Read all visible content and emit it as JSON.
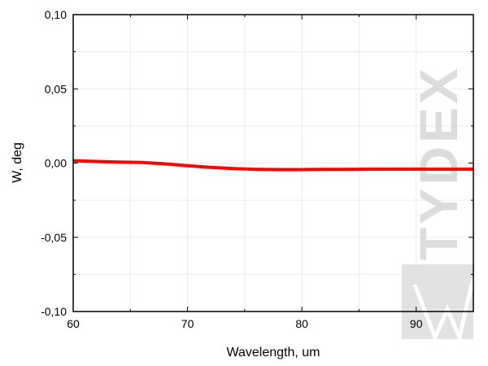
{
  "chart_data": {
    "type": "line",
    "title": "",
    "xlabel": "Wavelength, um",
    "ylabel": "W, deg",
    "xlim": [
      60,
      95
    ],
    "ylim": [
      -0.1,
      0.1
    ],
    "xticks": [
      60,
      70,
      80,
      90
    ],
    "xtick_labels": [
      "60",
      "70",
      "80",
      "90"
    ],
    "yticks": [
      0.1,
      0.05,
      0.0,
      -0.05,
      -0.1
    ],
    "ytick_labels": [
      "0,10",
      "0,05",
      "0,00",
      "-0,05",
      "-0,10"
    ],
    "grid": true,
    "series": [
      {
        "color": "#ff0000",
        "x": [
          60,
          62,
          64,
          66,
          68,
          70,
          72,
          74,
          76,
          78,
          80,
          82,
          84,
          86,
          88,
          90,
          92,
          95
        ],
        "y": [
          0.0016,
          0.0011,
          0.0007,
          0.0004,
          -0.0005,
          -0.0018,
          -0.0029,
          -0.0037,
          -0.0042,
          -0.0044,
          -0.0044,
          -0.0043,
          -0.0042,
          -0.0041,
          -0.0041,
          -0.0041,
          -0.0041,
          -0.0041
        ]
      }
    ]
  },
  "watermark": {
    "text": "TYDEX",
    "color": "#d9d9d9"
  }
}
